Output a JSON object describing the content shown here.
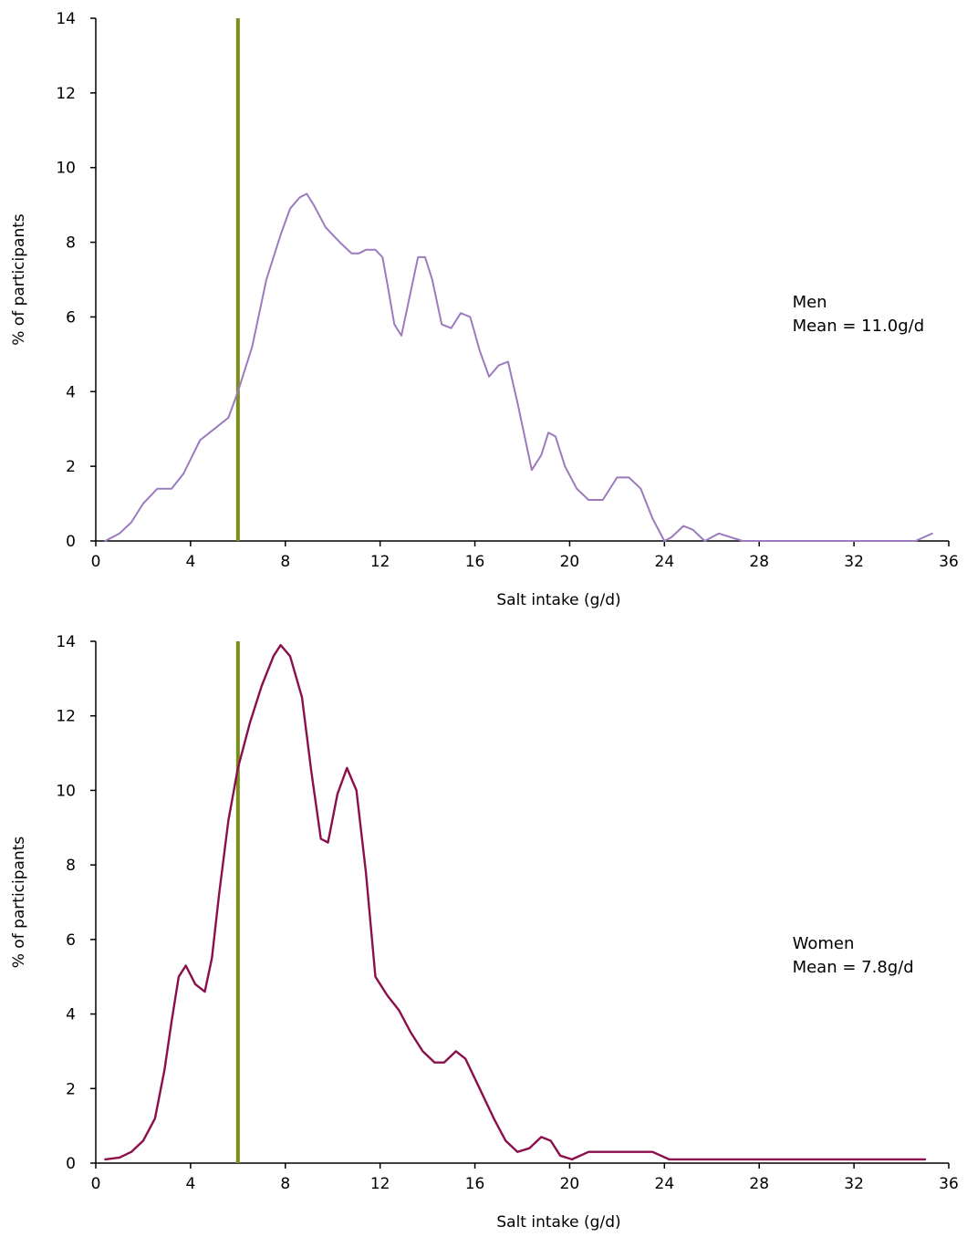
{
  "reference_line_color": "#7a8c1a",
  "chart_data": [
    {
      "type": "line",
      "xlabel": "Salt intake (g/d)",
      "ylabel": "% of participants",
      "xlim": [
        0,
        36
      ],
      "ylim": [
        0,
        14
      ],
      "xticks": [
        0,
        4,
        8,
        12,
        16,
        20,
        24,
        28,
        32,
        36
      ],
      "yticks": [
        0,
        2,
        4,
        6,
        8,
        10,
        12,
        14
      ],
      "grid": false,
      "reference_line_x": 6,
      "annotation": [
        "Men",
        "Mean = 11.0g/d"
      ],
      "series": [
        {
          "color": "#9b7bbd",
          "points": [
            [
              0.4,
              0
            ],
            [
              1.0,
              0.2
            ],
            [
              1.5,
              0.5
            ],
            [
              2.0,
              1.0
            ],
            [
              2.6,
              1.4
            ],
            [
              3.2,
              1.4
            ],
            [
              3.7,
              1.8
            ],
            [
              4.4,
              2.7
            ],
            [
              5.0,
              3.0
            ],
            [
              5.6,
              3.3
            ],
            [
              6.0,
              4.0
            ],
            [
              6.6,
              5.2
            ],
            [
              7.2,
              7.0
            ],
            [
              7.8,
              8.2
            ],
            [
              8.2,
              8.9
            ],
            [
              8.6,
              9.2
            ],
            [
              8.9,
              9.3
            ],
            [
              9.2,
              9.0
            ],
            [
              9.7,
              8.4
            ],
            [
              10.3,
              8.0
            ],
            [
              10.8,
              7.7
            ],
            [
              11.1,
              7.7
            ],
            [
              11.4,
              7.8
            ],
            [
              11.8,
              7.8
            ],
            [
              12.1,
              7.6
            ],
            [
              12.3,
              6.9
            ],
            [
              12.6,
              5.8
            ],
            [
              12.9,
              5.5
            ],
            [
              13.3,
              6.7
            ],
            [
              13.6,
              7.6
            ],
            [
              13.9,
              7.6
            ],
            [
              14.2,
              7.0
            ],
            [
              14.6,
              5.8
            ],
            [
              15.0,
              5.7
            ],
            [
              15.4,
              6.1
            ],
            [
              15.8,
              6.0
            ],
            [
              16.2,
              5.1
            ],
            [
              16.6,
              4.4
            ],
            [
              17.0,
              4.7
            ],
            [
              17.4,
              4.8
            ],
            [
              17.8,
              3.7
            ],
            [
              18.1,
              2.8
            ],
            [
              18.4,
              1.9
            ],
            [
              18.8,
              2.3
            ],
            [
              19.1,
              2.9
            ],
            [
              19.4,
              2.8
            ],
            [
              19.8,
              2.0
            ],
            [
              20.3,
              1.4
            ],
            [
              20.8,
              1.1
            ],
            [
              21.4,
              1.1
            ],
            [
              22.0,
              1.7
            ],
            [
              22.5,
              1.7
            ],
            [
              23.0,
              1.4
            ],
            [
              23.5,
              0.6
            ],
            [
              24.0,
              0.0
            ],
            [
              24.3,
              0.1
            ],
            [
              24.8,
              0.4
            ],
            [
              25.2,
              0.3
            ],
            [
              25.7,
              0.0
            ],
            [
              26.3,
              0.2
            ],
            [
              26.8,
              0.1
            ],
            [
              27.3,
              0.0
            ],
            [
              30,
              0.0
            ],
            [
              33,
              0.0
            ],
            [
              34.6,
              0.0
            ],
            [
              35.3,
              0.2
            ]
          ]
        }
      ]
    },
    {
      "type": "line",
      "xlabel": "Salt intake (g/d)",
      "ylabel": "% of participants",
      "xlim": [
        0,
        36
      ],
      "ylim": [
        0,
        14
      ],
      "xticks": [
        0,
        4,
        8,
        12,
        16,
        20,
        24,
        28,
        32,
        36
      ],
      "yticks": [
        0,
        2,
        4,
        6,
        8,
        10,
        12,
        14
      ],
      "grid": false,
      "reference_line_x": 6,
      "annotation": [
        "Women",
        "Mean = 7.8g/d"
      ],
      "series": [
        {
          "color": "#8a0f4b",
          "points": [
            [
              0.4,
              0.1
            ],
            [
              1.0,
              0.15
            ],
            [
              1.5,
              0.3
            ],
            [
              2.0,
              0.6
            ],
            [
              2.5,
              1.2
            ],
            [
              2.9,
              2.5
            ],
            [
              3.2,
              3.8
            ],
            [
              3.5,
              5.0
            ],
            [
              3.8,
              5.3
            ],
            [
              4.2,
              4.8
            ],
            [
              4.6,
              4.6
            ],
            [
              4.9,
              5.5
            ],
            [
              5.2,
              7.2
            ],
            [
              5.6,
              9.2
            ],
            [
              6.0,
              10.6
            ],
            [
              6.5,
              11.8
            ],
            [
              7.0,
              12.8
            ],
            [
              7.5,
              13.6
            ],
            [
              7.8,
              13.9
            ],
            [
              8.2,
              13.6
            ],
            [
              8.7,
              12.5
            ],
            [
              9.1,
              10.5
            ],
            [
              9.5,
              8.7
            ],
            [
              9.8,
              8.6
            ],
            [
              10.2,
              9.9
            ],
            [
              10.6,
              10.6
            ],
            [
              11.0,
              10.0
            ],
            [
              11.4,
              7.8
            ],
            [
              11.8,
              5.0
            ],
            [
              12.3,
              4.5
            ],
            [
              12.8,
              4.1
            ],
            [
              13.3,
              3.5
            ],
            [
              13.8,
              3.0
            ],
            [
              14.3,
              2.7
            ],
            [
              14.7,
              2.7
            ],
            [
              15.2,
              3.0
            ],
            [
              15.6,
              2.8
            ],
            [
              16.2,
              2.0
            ],
            [
              16.8,
              1.2
            ],
            [
              17.3,
              0.6
            ],
            [
              17.8,
              0.3
            ],
            [
              18.3,
              0.4
            ],
            [
              18.8,
              0.7
            ],
            [
              19.2,
              0.6
            ],
            [
              19.6,
              0.2
            ],
            [
              20.1,
              0.1
            ],
            [
              20.8,
              0.3
            ],
            [
              22.0,
              0.3
            ],
            [
              23.5,
              0.3
            ],
            [
              24.2,
              0.1
            ],
            [
              26,
              0.1
            ],
            [
              30,
              0.1
            ],
            [
              35.0,
              0.1
            ]
          ]
        }
      ]
    }
  ]
}
